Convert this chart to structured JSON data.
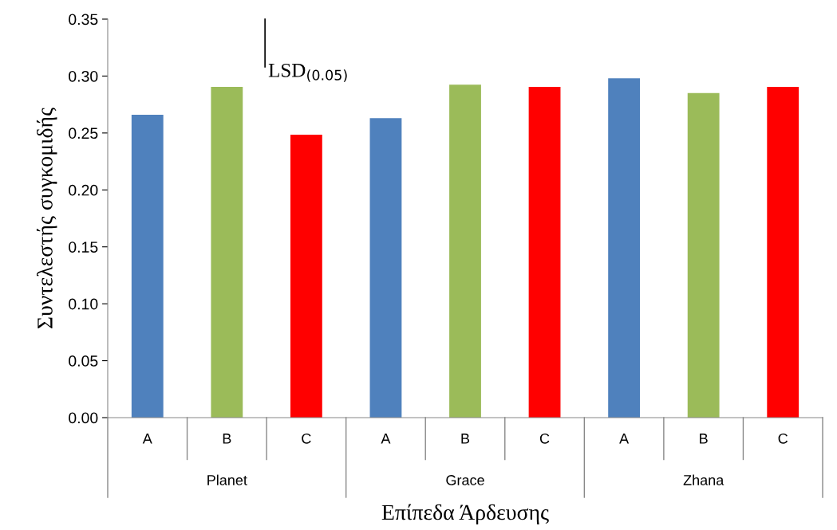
{
  "chart_data": {
    "type": "bar",
    "categories": [
      "A",
      "B",
      "C",
      "A",
      "B",
      "C",
      "A",
      "B",
      "C"
    ],
    "values": [
      0.266,
      0.2905,
      0.2485,
      0.263,
      0.2925,
      0.2905,
      0.298,
      0.285,
      0.2905
    ],
    "colors": [
      "#4f81bd",
      "#9bbb59",
      "#ff0000",
      "#4f81bd",
      "#9bbb59",
      "#ff0000",
      "#4f81bd",
      "#9bbb59",
      "#ff0000"
    ],
    "ylim": [
      0,
      0.35
    ],
    "yticks": [
      {
        "value": 0,
        "label": "0.00"
      },
      {
        "value": 0.05,
        "label": "0.05"
      },
      {
        "value": 0.1,
        "label": "0.10"
      },
      {
        "value": 0.15,
        "label": "0.15"
      },
      {
        "value": 0.2,
        "label": "0.20"
      },
      {
        "value": 0.25,
        "label": "0.25"
      },
      {
        "value": 0.3,
        "label": "0.30"
      },
      {
        "value": 0.35,
        "label": "0.35"
      }
    ],
    "ylabel": "Συντελεστής συγκομιδής",
    "xlabel": "Επίπεδα Άρδευσης",
    "annotations": [
      "Planet",
      "Grace",
      "Zhana",
      "LSD$_{(0.05)}$"
    ],
    "grid": false,
    "legend": false
  }
}
